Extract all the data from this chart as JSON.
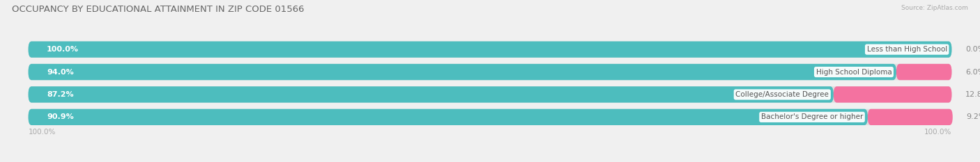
{
  "title": "OCCUPANCY BY EDUCATIONAL ATTAINMENT IN ZIP CODE 01566",
  "source": "Source: ZipAtlas.com",
  "categories": [
    "Less than High School",
    "High School Diploma",
    "College/Associate Degree",
    "Bachelor's Degree or higher"
  ],
  "owner_pct": [
    100.0,
    94.0,
    87.2,
    90.9
  ],
  "renter_pct": [
    0.0,
    6.0,
    12.8,
    9.2
  ],
  "owner_color": "#4dbdbe",
  "renter_color": "#f472a0",
  "bg_color": "#f0f0f0",
  "row_bg_color": "#e0e0e0",
  "title_color": "#666666",
  "source_color": "#aaaaaa",
  "label_color_white": "#ffffff",
  "label_color_gray": "#888888",
  "cat_label_color": "#555555",
  "title_fontsize": 9.5,
  "source_fontsize": 6.5,
  "bar_label_fontsize": 8,
  "renter_label_fontsize": 8,
  "cat_label_fontsize": 7.5,
  "legend_fontsize": 7.5,
  "left_axis_label": "100.0%",
  "right_axis_label": "100.0%",
  "axis_label_fontsize": 7.5,
  "axis_label_color": "#aaaaaa"
}
